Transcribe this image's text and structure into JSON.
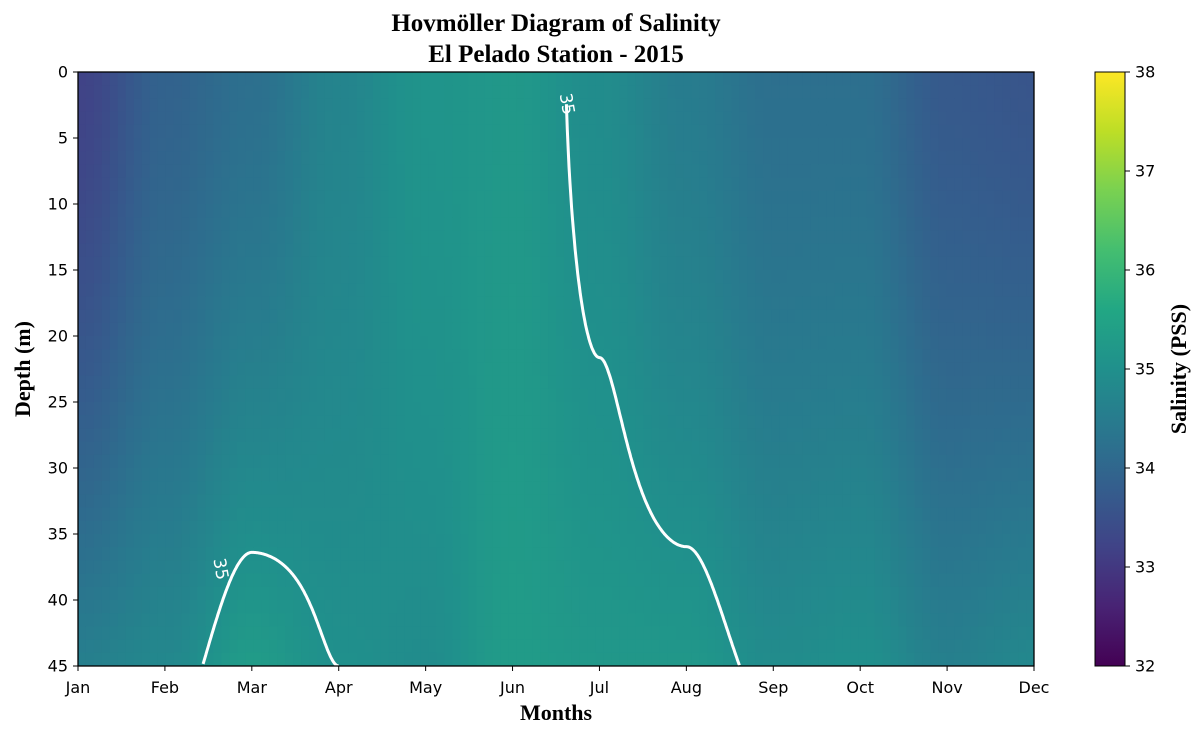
{
  "chart_data": {
    "type": "heatmap",
    "title": [
      "Hovmöller Diagram of Salinity",
      "El Pelado Station - 2015"
    ],
    "xlabel": "Months",
    "ylabel": "Depth (m)",
    "x_tick_labels": [
      "Jan",
      "Feb",
      "Mar",
      "Apr",
      "May",
      "Jun",
      "Jul",
      "Aug",
      "Sep",
      "Oct",
      "Nov",
      "Dec"
    ],
    "y_ticks": [
      0,
      5,
      10,
      15,
      20,
      25,
      30,
      35,
      40,
      45
    ],
    "ylim": [
      45,
      0
    ],
    "y_inverted": true,
    "colorbar": {
      "label": "Salinity (PSS)",
      "ticks": [
        32,
        33,
        34,
        35,
        36,
        37,
        38
      ],
      "range": [
        32,
        38
      ],
      "colormap": "viridis"
    },
    "contours": [
      {
        "level": 35,
        "label": "35",
        "color": "#ffffff"
      }
    ],
    "salinity_by_month": {
      "months": [
        "Jan",
        "Feb",
        "Mar",
        "Apr",
        "May",
        "Jun",
        "Jul",
        "Aug",
        "Sep",
        "Oct",
        "Nov",
        "Dec"
      ],
      "surface_0m": [
        33.2,
        33.9,
        34.2,
        34.7,
        35.1,
        35.2,
        34.9,
        34.5,
        34.2,
        34.2,
        33.7,
        33.6
      ],
      "bottom_45m": [
        34.6,
        34.8,
        35.3,
        35.0,
        34.9,
        35.3,
        35.2,
        35.2,
        34.9,
        35.0,
        34.6,
        34.8
      ]
    }
  }
}
